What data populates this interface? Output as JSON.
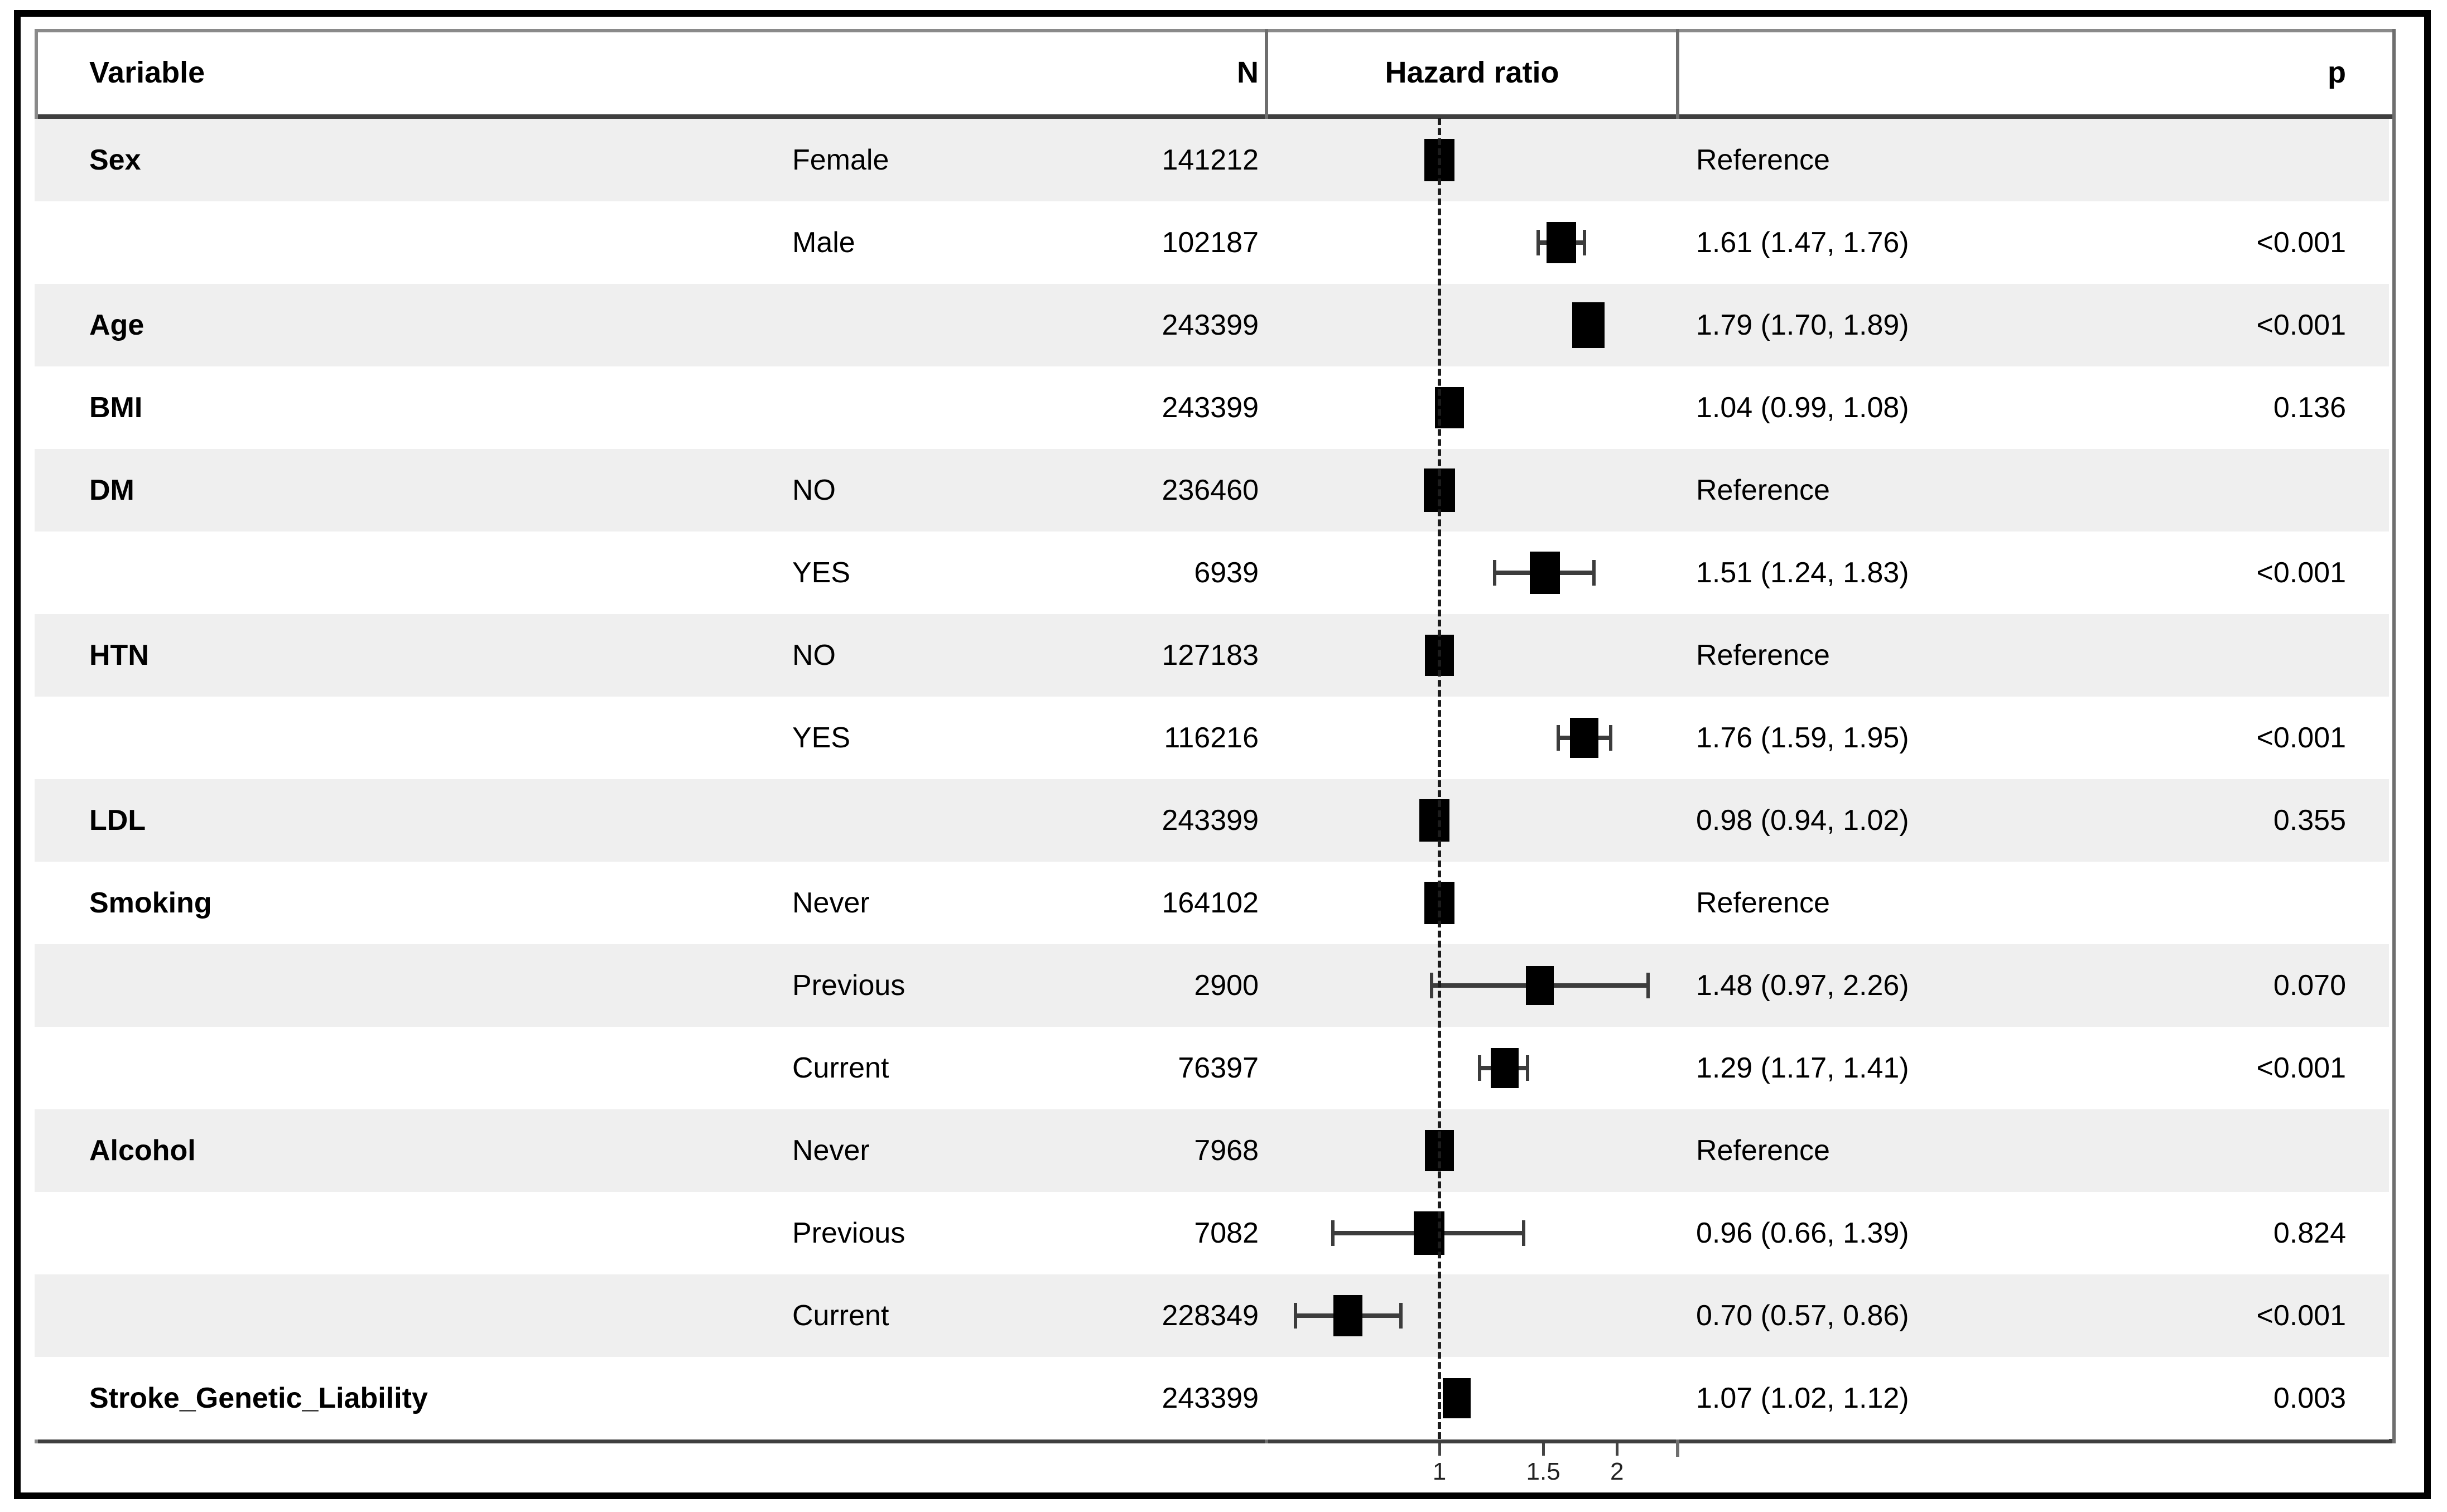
{
  "header": {
    "variable": "Variable",
    "n": "N",
    "hazard_ratio": "Hazard ratio",
    "p": "p"
  },
  "colors": {
    "stripe": "#efefef",
    "row_white": "#ffffff",
    "box": "#000000",
    "whisker": "#3c3c3c",
    "ref_dash": "#1c1c1c",
    "heavy_line": "#3f3f3f",
    "header_top_line": "#8a8a8a",
    "vertical_line": "#6e6e6e",
    "outer_frame": "#000000",
    "text": "#000000"
  },
  "chart_data": {
    "type": "forest",
    "title": "Hazard ratio",
    "xscale": "log10",
    "xticks": [
      1,
      1.5,
      2
    ],
    "xtick_labels": [
      "1",
      "1.5",
      "2"
    ],
    "ref_line": 1,
    "xlim": [
      0.51,
      2.5
    ],
    "legend_position": "none",
    "grid": false,
    "rows": [
      {
        "variable": "Sex",
        "level": "Female",
        "n": "141212",
        "hr": 1.0,
        "lo": null,
        "hi": null,
        "estimate": "Reference",
        "p": "",
        "shaded": true,
        "box_scale": 1.0
      },
      {
        "variable": "",
        "level": "Male",
        "n": "102187",
        "hr": 1.61,
        "lo": 1.47,
        "hi": 1.76,
        "estimate": "1.61 (1.47, 1.76)",
        "p": "<0.001",
        "shaded": false,
        "box_scale": 0.98
      },
      {
        "variable": "Age",
        "level": "",
        "n": "243399",
        "hr": 1.79,
        "lo": 1.7,
        "hi": 1.89,
        "estimate": "1.79 (1.70, 1.89)",
        "p": "<0.001",
        "shaded": true,
        "box_scale": 1.07
      },
      {
        "variable": "BMI",
        "level": "",
        "n": "243399",
        "hr": 1.04,
        "lo": 0.99,
        "hi": 1.08,
        "estimate": "1.04 (0.99, 1.08)",
        "p": "0.136",
        "shaded": false,
        "box_scale": 0.97
      },
      {
        "variable": "DM",
        "level": "NO",
        "n": "236460",
        "hr": 1.0,
        "lo": null,
        "hi": null,
        "estimate": "Reference",
        "p": "",
        "shaded": true,
        "box_scale": 1.02
      },
      {
        "variable": "",
        "level": "YES",
        "n": "6939",
        "hr": 1.51,
        "lo": 1.24,
        "hi": 1.83,
        "estimate": "1.51 (1.24, 1.83)",
        "p": "<0.001",
        "shaded": false,
        "box_scale": 1.0
      },
      {
        "variable": "HTN",
        "level": "NO",
        "n": "127183",
        "hr": 1.0,
        "lo": null,
        "hi": null,
        "estimate": "Reference",
        "p": "",
        "shaded": true,
        "box_scale": 0.98
      },
      {
        "variable": "",
        "level": "YES",
        "n": "116216",
        "hr": 1.76,
        "lo": 1.59,
        "hi": 1.95,
        "estimate": "1.76 (1.59, 1.95)",
        "p": "<0.001",
        "shaded": false,
        "box_scale": 0.94
      },
      {
        "variable": "LDL",
        "level": "",
        "n": "243399",
        "hr": 0.98,
        "lo": 0.94,
        "hi": 1.02,
        "estimate": "0.98 (0.94, 1.02)",
        "p": "0.355",
        "shaded": true,
        "box_scale": 1.0
      },
      {
        "variable": "Smoking",
        "level": "Never",
        "n": "164102",
        "hr": 1.0,
        "lo": null,
        "hi": null,
        "estimate": "Reference",
        "p": "",
        "shaded": false,
        "box_scale": 1.0
      },
      {
        "variable": "",
        "level": "Previous",
        "n": "2900",
        "hr": 1.48,
        "lo": 0.97,
        "hi": 2.26,
        "estimate": "1.48 (0.97, 2.26)",
        "p": "0.070",
        "shaded": true,
        "box_scale": 0.92
      },
      {
        "variable": "",
        "level": "Current",
        "n": "76397",
        "hr": 1.29,
        "lo": 1.17,
        "hi": 1.41,
        "estimate": "1.29 (1.17, 1.41)",
        "p": "<0.001",
        "shaded": false,
        "box_scale": 0.94
      },
      {
        "variable": "Alcohol",
        "level": "Never",
        "n": "7968",
        "hr": 1.0,
        "lo": null,
        "hi": null,
        "estimate": "Reference",
        "p": "",
        "shaded": true,
        "box_scale": 0.97
      },
      {
        "variable": "",
        "level": "Previous",
        "n": "7082",
        "hr": 0.96,
        "lo": 0.66,
        "hi": 1.39,
        "estimate": "0.96 (0.66, 1.39)",
        "p": "0.824",
        "shaded": false,
        "box_scale": 1.02
      },
      {
        "variable": "",
        "level": "Current",
        "n": "228349",
        "hr": 0.7,
        "lo": 0.57,
        "hi": 0.86,
        "estimate": "0.70 (0.57, 0.86)",
        "p": "<0.001",
        "shaded": true,
        "box_scale": 0.97
      },
      {
        "variable": "Stroke_Genetic_Liability",
        "level": "",
        "n": "243399",
        "hr": 1.07,
        "lo": 1.02,
        "hi": 1.12,
        "estimate": "1.07 (1.02, 1.12)",
        "p": "0.003",
        "shaded": false,
        "box_scale": 0.94
      }
    ]
  }
}
